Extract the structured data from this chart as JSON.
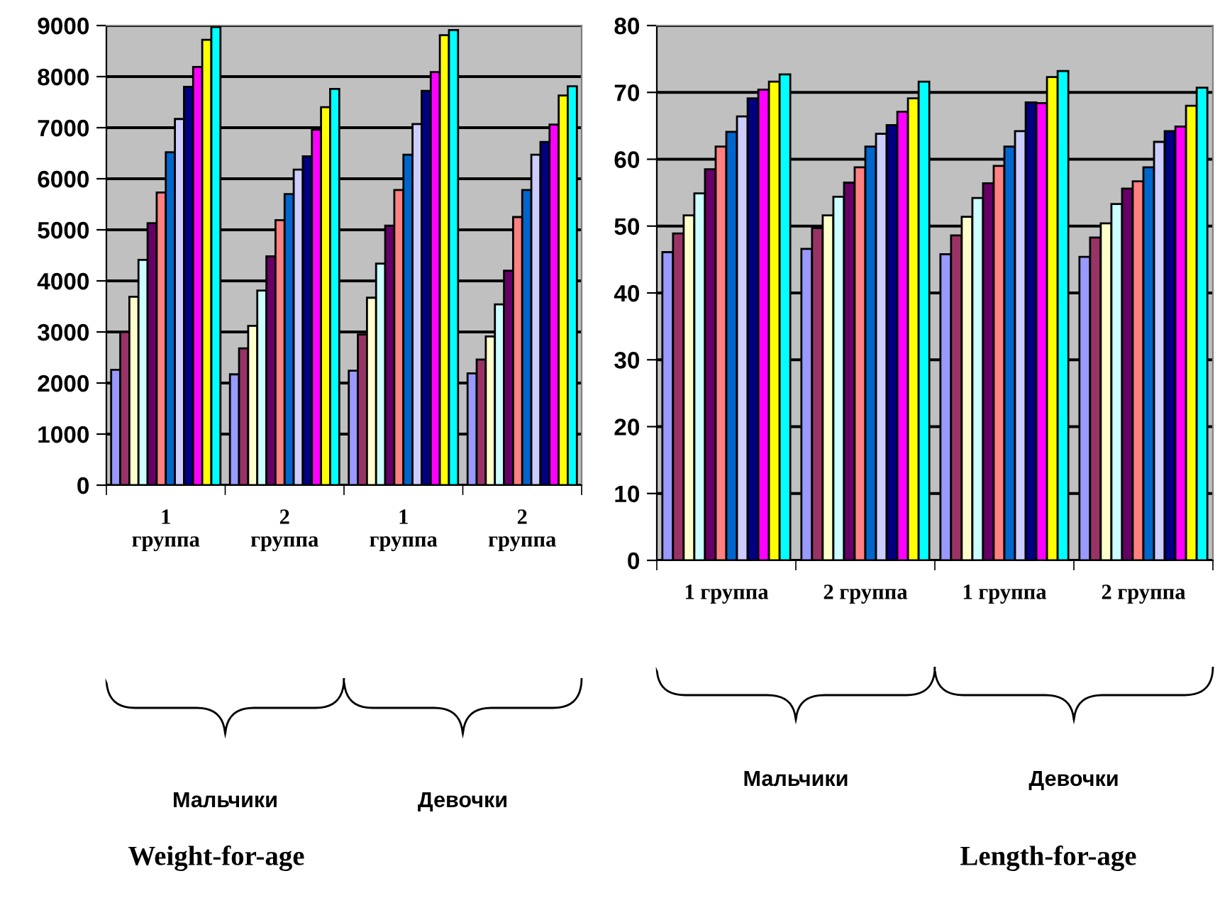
{
  "chart_data": [
    {
      "type": "bar",
      "title": "Weight-for-age",
      "categories": [
        "1\nгруппа",
        "2\nгруппа",
        "1\nгруппа",
        "2\nгруппа"
      ],
      "series": [
        {
          "color": "#9999ff",
          "values": [
            2260,
            2170,
            2240,
            2190
          ]
        },
        {
          "color": "#993366",
          "values": [
            3000,
            2680,
            2950,
            2460
          ]
        },
        {
          "color": "#ffffcc",
          "values": [
            3690,
            3120,
            3670,
            2910
          ]
        },
        {
          "color": "#ccffff",
          "values": [
            4410,
            3810,
            4340,
            3540
          ]
        },
        {
          "color": "#660066",
          "values": [
            5130,
            4480,
            5080,
            4200
          ]
        },
        {
          "color": "#ff8080",
          "values": [
            5730,
            5190,
            5780,
            5250
          ]
        },
        {
          "color": "#0066cc",
          "values": [
            6520,
            5700,
            6470,
            5780
          ]
        },
        {
          "color": "#ccccff",
          "values": [
            7170,
            6180,
            7070,
            6470
          ]
        },
        {
          "color": "#000080",
          "values": [
            7800,
            6440,
            7720,
            6720
          ]
        },
        {
          "color": "#ff00ff",
          "values": [
            8190,
            6960,
            8090,
            7060
          ]
        },
        {
          "color": "#ffff00",
          "values": [
            8720,
            7400,
            8810,
            7630
          ]
        },
        {
          "color": "#00ffff",
          "values": [
            8970,
            7760,
            8910,
            7810
          ]
        }
      ],
      "ylim": [
        0,
        9000
      ],
      "yticks": [
        0,
        1000,
        2000,
        3000,
        4000,
        5000,
        6000,
        7000,
        8000,
        9000
      ],
      "grid": "y",
      "legend": false,
      "annotations": [
        "Мальчики",
        "Девочки"
      ]
    },
    {
      "type": "bar",
      "title": "Length-for-age",
      "categories": [
        "1 группа",
        "2 группа",
        "1 группа",
        "2 группа"
      ],
      "series": [
        {
          "color": "#9999ff",
          "values": [
            46.1,
            46.6,
            45.8,
            45.4
          ]
        },
        {
          "color": "#993366",
          "values": [
            48.9,
            49.7,
            48.6,
            48.3
          ]
        },
        {
          "color": "#ffffcc",
          "values": [
            51.6,
            51.6,
            51.4,
            50.4
          ]
        },
        {
          "color": "#ccffff",
          "values": [
            54.9,
            54.4,
            54.2,
            53.3
          ]
        },
        {
          "color": "#660066",
          "values": [
            58.5,
            56.5,
            56.4,
            55.6
          ]
        },
        {
          "color": "#ff8080",
          "values": [
            61.9,
            58.8,
            59.0,
            56.7
          ]
        },
        {
          "color": "#0066cc",
          "values": [
            64.1,
            61.9,
            61.9,
            58.8
          ]
        },
        {
          "color": "#ccccff",
          "values": [
            66.4,
            63.8,
            64.2,
            62.6
          ]
        },
        {
          "color": "#000080",
          "values": [
            69.1,
            65.1,
            68.5,
            64.2
          ]
        },
        {
          "color": "#ff00ff",
          "values": [
            70.4,
            67.1,
            68.4,
            64.9
          ]
        },
        {
          "color": "#ffff00",
          "values": [
            71.6,
            69.1,
            72.3,
            68.0
          ]
        },
        {
          "color": "#00ffff",
          "values": [
            72.7,
            71.6,
            73.2,
            70.7
          ]
        }
      ],
      "ylim": [
        0,
        80
      ],
      "yticks": [
        0,
        10,
        20,
        30,
        40,
        50,
        60,
        70,
        80
      ],
      "grid": "y",
      "legend": false,
      "annotations": [
        "Мальчики",
        "Девочки"
      ]
    }
  ]
}
